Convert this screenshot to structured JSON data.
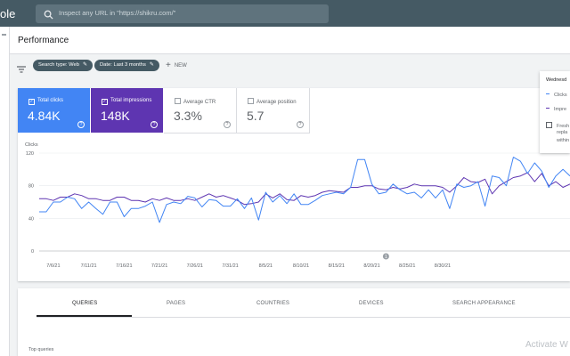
{
  "app": {
    "brand_fragment": "ole",
    "search_placeholder": "Inspect any URL in \"https://shikru.com/\""
  },
  "page": {
    "title": "Performance"
  },
  "filters": {
    "chips": [
      {
        "label": "Search type: Web"
      },
      {
        "label": "Date: Last 3 months"
      }
    ],
    "new_label": "NEW"
  },
  "metrics": [
    {
      "label": "Total clicks",
      "value": "4.84K",
      "checked": true,
      "color": "#4285f4"
    },
    {
      "label": "Total impressions",
      "value": "148K",
      "checked": true,
      "color": "#5e35b1"
    },
    {
      "label": "Average CTR",
      "value": "3.3%",
      "checked": false
    },
    {
      "label": "Average position",
      "value": "5.7",
      "checked": false
    }
  ],
  "tooltip": {
    "date": "Wednesd",
    "clicks": "Clicks",
    "impressions": "Impre",
    "fresh_line1": "Fresh",
    "fresh_line2": "repla",
    "fresh_line3": "within"
  },
  "tabs": [
    "QUERIES",
    "PAGES",
    "COUNTRIES",
    "DEVICES",
    "SEARCH APPEARANCE"
  ],
  "active_tab": "QUERIES",
  "top_queries_label": "Top queries",
  "annotation_marker": "1",
  "watermark": "Activate W",
  "chart_data": {
    "type": "line",
    "ylabel": "Clicks",
    "ylim": [
      0,
      120
    ],
    "yticks": [
      "0",
      "40",
      "80",
      "120"
    ],
    "xticks": [
      "7/6/21",
      "7/11/21",
      "7/16/21",
      "7/21/21",
      "7/26/21",
      "7/31/21",
      "8/5/21",
      "8/10/21",
      "8/15/21",
      "8/20/21",
      "8/25/21",
      "8/30/21"
    ],
    "x_start": "7/4/21",
    "colors": {
      "clicks": "#4285f4",
      "impressions": "#5e35b1"
    },
    "series": [
      {
        "name": "Clicks",
        "values": [
          48,
          48,
          60,
          60,
          66,
          64,
          52,
          60,
          52,
          45,
          60,
          60,
          42,
          52,
          52,
          55,
          60,
          35,
          57,
          60,
          58,
          67,
          65,
          54,
          63,
          62,
          55,
          55,
          64,
          52,
          65,
          38,
          72,
          60,
          68,
          58,
          70,
          57,
          57,
          62,
          68,
          70,
          72,
          70,
          78,
          112,
          112,
          82,
          70,
          72,
          82,
          75,
          70,
          72,
          65,
          75,
          65,
          75,
          52,
          82,
          78,
          80,
          85,
          55,
          92,
          90,
          80,
          115,
          110,
          95,
          108,
          98,
          78,
          92,
          100,
          92
        ]
      },
      {
        "name": "Impressions",
        "values": [
          64,
          64,
          62,
          66,
          66,
          70,
          68,
          64,
          64,
          62,
          62,
          66,
          66,
          62,
          62,
          60,
          64,
          62,
          65,
          62,
          62,
          64,
          62,
          66,
          70,
          66,
          68,
          65,
          62,
          57,
          58,
          60,
          70,
          65,
          70,
          63,
          62,
          68,
          66,
          68,
          72,
          74,
          73,
          72,
          78,
          78,
          80,
          80,
          76,
          75,
          78,
          76,
          78,
          82,
          80,
          80,
          80,
          78,
          72,
          80,
          90,
          85,
          84,
          88,
          70,
          80,
          85,
          90,
          92,
          96,
          85,
          95,
          80,
          85,
          78,
          82
        ]
      }
    ]
  }
}
